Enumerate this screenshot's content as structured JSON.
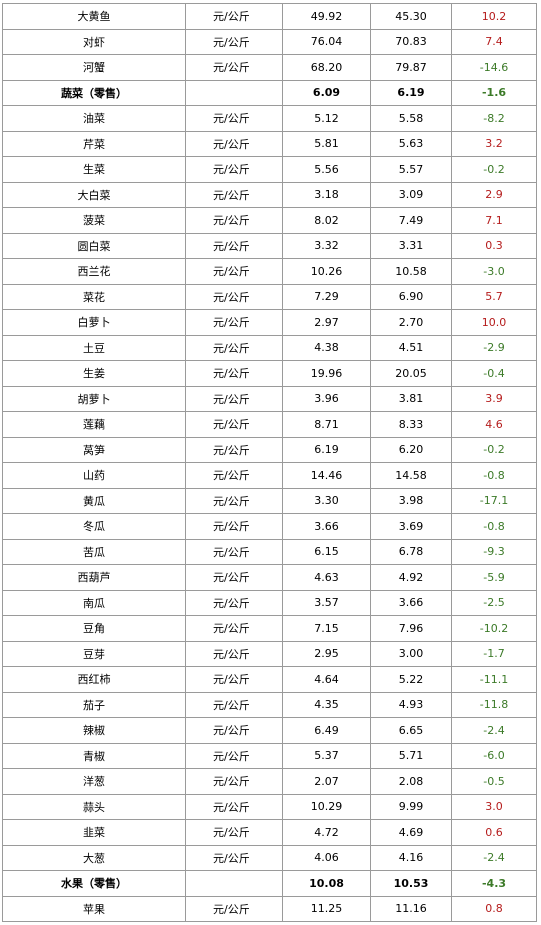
{
  "rows": [
    {
      "name": "大黄鱼",
      "unit": "元/公斤",
      "current": "49.92",
      "previous": "45.30",
      "change": "10.2",
      "trend": "up",
      "group": false
    },
    {
      "name": "对虾",
      "unit": "元/公斤",
      "current": "76.04",
      "previous": "70.83",
      "change": "7.4",
      "trend": "up",
      "group": false
    },
    {
      "name": "河蟹",
      "unit": "元/公斤",
      "current": "68.20",
      "previous": "79.87",
      "change": "-14.6",
      "trend": "down",
      "group": false
    },
    {
      "name": "蔬菜（零售）",
      "unit": "",
      "current": "6.09",
      "previous": "6.19",
      "change": "-1.6",
      "trend": "down",
      "group": true
    },
    {
      "name": "油菜",
      "unit": "元/公斤",
      "current": "5.12",
      "previous": "5.58",
      "change": "-8.2",
      "trend": "down",
      "group": false
    },
    {
      "name": "芹菜",
      "unit": "元/公斤",
      "current": "5.81",
      "previous": "5.63",
      "change": "3.2",
      "trend": "up",
      "group": false
    },
    {
      "name": "生菜",
      "unit": "元/公斤",
      "current": "5.56",
      "previous": "5.57",
      "change": "-0.2",
      "trend": "down",
      "group": false
    },
    {
      "name": "大白菜",
      "unit": "元/公斤",
      "current": "3.18",
      "previous": "3.09",
      "change": "2.9",
      "trend": "up",
      "group": false
    },
    {
      "name": "菠菜",
      "unit": "元/公斤",
      "current": "8.02",
      "previous": "7.49",
      "change": "7.1",
      "trend": "up",
      "group": false
    },
    {
      "name": "圆白菜",
      "unit": "元/公斤",
      "current": "3.32",
      "previous": "3.31",
      "change": "0.3",
      "trend": "up",
      "group": false
    },
    {
      "name": "西兰花",
      "unit": "元/公斤",
      "current": "10.26",
      "previous": "10.58",
      "change": "-3.0",
      "trend": "down",
      "group": false
    },
    {
      "name": "菜花",
      "unit": "元/公斤",
      "current": "7.29",
      "previous": "6.90",
      "change": "5.7",
      "trend": "up",
      "group": false
    },
    {
      "name": "白萝卜",
      "unit": "元/公斤",
      "current": "2.97",
      "previous": "2.70",
      "change": "10.0",
      "trend": "up",
      "group": false
    },
    {
      "name": "土豆",
      "unit": "元/公斤",
      "current": "4.38",
      "previous": "4.51",
      "change": "-2.9",
      "trend": "down",
      "group": false
    },
    {
      "name": "生姜",
      "unit": "元/公斤",
      "current": "19.96",
      "previous": "20.05",
      "change": "-0.4",
      "trend": "down",
      "group": false
    },
    {
      "name": "胡萝卜",
      "unit": "元/公斤",
      "current": "3.96",
      "previous": "3.81",
      "change": "3.9",
      "trend": "up",
      "group": false
    },
    {
      "name": "莲藕",
      "unit": "元/公斤",
      "current": "8.71",
      "previous": "8.33",
      "change": "4.6",
      "trend": "up",
      "group": false
    },
    {
      "name": "莴笋",
      "unit": "元/公斤",
      "current": "6.19",
      "previous": "6.20",
      "change": "-0.2",
      "trend": "down",
      "group": false
    },
    {
      "name": "山药",
      "unit": "元/公斤",
      "current": "14.46",
      "previous": "14.58",
      "change": "-0.8",
      "trend": "down",
      "group": false
    },
    {
      "name": "黄瓜",
      "unit": "元/公斤",
      "current": "3.30",
      "previous": "3.98",
      "change": "-17.1",
      "trend": "down",
      "group": false
    },
    {
      "name": "冬瓜",
      "unit": "元/公斤",
      "current": "3.66",
      "previous": "3.69",
      "change": "-0.8",
      "trend": "down",
      "group": false
    },
    {
      "name": "苦瓜",
      "unit": "元/公斤",
      "current": "6.15",
      "previous": "6.78",
      "change": "-9.3",
      "trend": "down",
      "group": false
    },
    {
      "name": "西葫芦",
      "unit": "元/公斤",
      "current": "4.63",
      "previous": "4.92",
      "change": "-5.9",
      "trend": "down",
      "group": false
    },
    {
      "name": "南瓜",
      "unit": "元/公斤",
      "current": "3.57",
      "previous": "3.66",
      "change": "-2.5",
      "trend": "down",
      "group": false
    },
    {
      "name": "豆角",
      "unit": "元/公斤",
      "current": "7.15",
      "previous": "7.96",
      "change": "-10.2",
      "trend": "down",
      "group": false
    },
    {
      "name": "豆芽",
      "unit": "元/公斤",
      "current": "2.95",
      "previous": "3.00",
      "change": "-1.7",
      "trend": "down",
      "group": false
    },
    {
      "name": "西红柿",
      "unit": "元/公斤",
      "current": "4.64",
      "previous": "5.22",
      "change": "-11.1",
      "trend": "down",
      "group": false
    },
    {
      "name": "茄子",
      "unit": "元/公斤",
      "current": "4.35",
      "previous": "4.93",
      "change": "-11.8",
      "trend": "down",
      "group": false
    },
    {
      "name": "辣椒",
      "unit": "元/公斤",
      "current": "6.49",
      "previous": "6.65",
      "change": "-2.4",
      "trend": "down",
      "group": false
    },
    {
      "name": "青椒",
      "unit": "元/公斤",
      "current": "5.37",
      "previous": "5.71",
      "change": "-6.0",
      "trend": "down",
      "group": false
    },
    {
      "name": "洋葱",
      "unit": "元/公斤",
      "current": "2.07",
      "previous": "2.08",
      "change": "-0.5",
      "trend": "down",
      "group": false
    },
    {
      "name": "蒜头",
      "unit": "元/公斤",
      "current": "10.29",
      "previous": "9.99",
      "change": "3.0",
      "trend": "up",
      "group": false
    },
    {
      "name": "韭菜",
      "unit": "元/公斤",
      "current": "4.72",
      "previous": "4.69",
      "change": "0.6",
      "trend": "up",
      "group": false
    },
    {
      "name": "大葱",
      "unit": "元/公斤",
      "current": "4.06",
      "previous": "4.16",
      "change": "-2.4",
      "trend": "down",
      "group": false
    },
    {
      "name": "水果（零售）",
      "unit": "",
      "current": "10.08",
      "previous": "10.53",
      "change": "-4.3",
      "trend": "down",
      "group": true
    },
    {
      "name": "苹果",
      "unit": "元/公斤",
      "current": "11.25",
      "previous": "11.16",
      "change": "0.8",
      "trend": "up",
      "group": false
    }
  ],
  "colors": {
    "increase": "#b51c1c",
    "decrease": "#3c7a28",
    "border": "#9a9a9a"
  }
}
